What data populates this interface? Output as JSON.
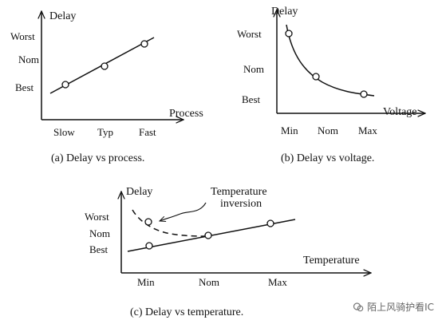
{
  "chart_data": [
    {
      "type": "line",
      "caption": "(a) Delay vs process.",
      "ylabel": "Delay",
      "xlabel": "Process",
      "categories": [
        "Slow",
        "Typ",
        "Fast"
      ],
      "y_levels": [
        "Best",
        "Nom",
        "Worst"
      ],
      "series": [
        {
          "values": [
            "Best",
            "Nom",
            "Worst"
          ]
        }
      ]
    },
    {
      "type": "line",
      "caption": "(b) Delay vs voltage.",
      "ylabel": "Delay",
      "xlabel": "Voltage",
      "categories": [
        "Min",
        "Nom",
        "Max"
      ],
      "y_levels": [
        "Best",
        "Nom",
        "Worst"
      ],
      "series": [
        {
          "values": [
            "Worst",
            "Nom",
            "Best"
          ]
        }
      ]
    },
    {
      "type": "line",
      "caption": "(c) Delay vs temperature.",
      "ylabel": "Delay",
      "xlabel": "Temperature",
      "categories": [
        "Min",
        "Nom",
        "Max"
      ],
      "y_levels": [
        "Best",
        "Nom",
        "Worst"
      ],
      "series": [
        {
          "values": [
            "Best",
            "Nom",
            "Worst"
          ]
        },
        {
          "values": [
            "Worst",
            "Nom",
            null
          ],
          "style": "dashed"
        }
      ],
      "annotation": [
        "Temperature",
        "inversion"
      ]
    }
  ],
  "watermark": "陌上风骑护看IC"
}
